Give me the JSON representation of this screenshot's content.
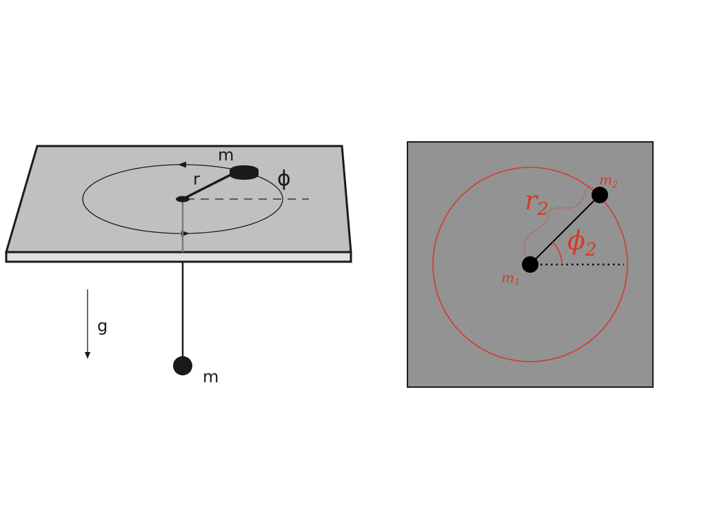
{
  "left_diagram": {
    "labels": {
      "top_mass": "m",
      "radius": "r",
      "angle": "ϕ",
      "gravity": "g",
      "hanging_mass": "m"
    },
    "colors": {
      "table_top": "#c0c0c0",
      "table_edge": "#e0e0e0",
      "outline": "#1a1a1a",
      "string_below": "#7a7a7a"
    }
  },
  "right_diagram": {
    "labels": {
      "mass2": "m",
      "mass2_sub": "2",
      "mass1": "m",
      "mass1_sub": "1",
      "radius": "r",
      "radius_sub": "2",
      "angle": "ϕ",
      "angle_sub": "2"
    },
    "colors": {
      "background": "#939393",
      "orbit": "#d43a2a",
      "labels": "#d43a2a",
      "masses": "#000000"
    }
  }
}
